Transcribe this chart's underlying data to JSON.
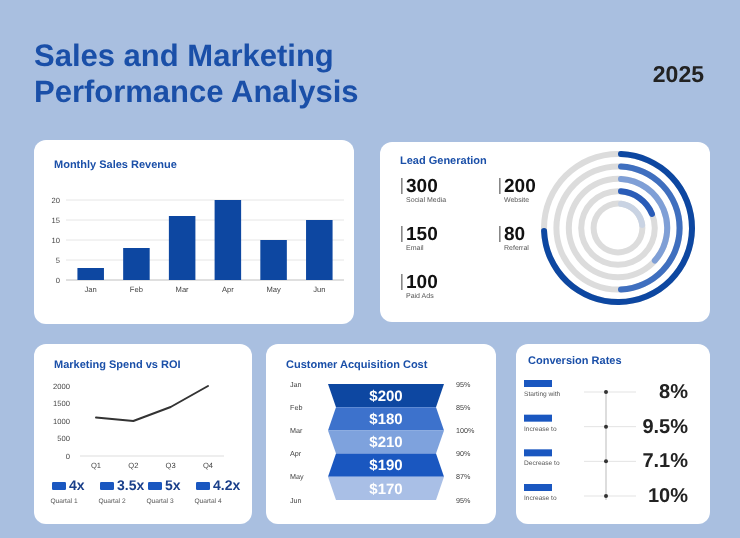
{
  "chart_data": [
    {
      "type": "other",
      "title": "Sales and Marketing Performance Analysis",
      "subtitle": "2025"
    },
    {
      "type": "bar",
      "title": "Monthly Sales Revenue",
      "categories": [
        "Jan",
        "Feb",
        "Mar",
        "Apr",
        "May",
        "Jun"
      ],
      "values": [
        3,
        8,
        16,
        20,
        10,
        15
      ],
      "color": "#0d47a1",
      "ylim": [
        0,
        20
      ],
      "yticks": [
        0,
        5,
        10,
        15,
        20
      ],
      "grid": "y"
    },
    {
      "type": "other",
      "title": "Lead Generation",
      "categories": [
        "Social Media",
        "Website",
        "Email",
        "Referral",
        "Paid Ads"
      ],
      "values": [
        300,
        200,
        150,
        80,
        100
      ],
      "data_labels": true
    },
    {
      "type": "line",
      "title": "Marketing Spend vs ROI",
      "categories": [
        "Q1",
        "Q2",
        "Q3",
        "Q4"
      ],
      "values": [
        1100,
        1000,
        1400,
        2000
      ],
      "color": "#333333",
      "ylim": [
        0,
        2000
      ],
      "yticks": [
        0,
        500,
        1000,
        1500,
        2000
      ],
      "annotations": [
        "4x",
        "3.5x",
        "5x",
        "4.2x",
        "Quartal 1",
        "Quartal 2",
        "Quartal 3",
        "Quartal 4"
      ]
    },
    {
      "type": "other",
      "title": "Customer Acquisition Cost",
      "categories": [
        "Jan",
        "Feb",
        "Mar",
        "Apr",
        "May",
        "Jun"
      ],
      "values": [
        200,
        180,
        210,
        190,
        170,
        null
      ],
      "value_labels": [
        "$200",
        "$180",
        "$210",
        "$190",
        "$170",
        null
      ],
      "annotations": [
        "95%",
        "85%",
        "100%",
        "90%",
        "87%",
        "95%"
      ]
    },
    {
      "type": "other",
      "title": "Conversion Rates",
      "values": [
        8,
        9.5,
        7.1,
        10
      ],
      "value_labels": [
        "8%",
        "9.5%",
        "7.1%",
        "10%"
      ],
      "annotations": [
        "Starting with",
        "Increase to",
        "Decrease to",
        "Increase to"
      ]
    }
  ]
}
